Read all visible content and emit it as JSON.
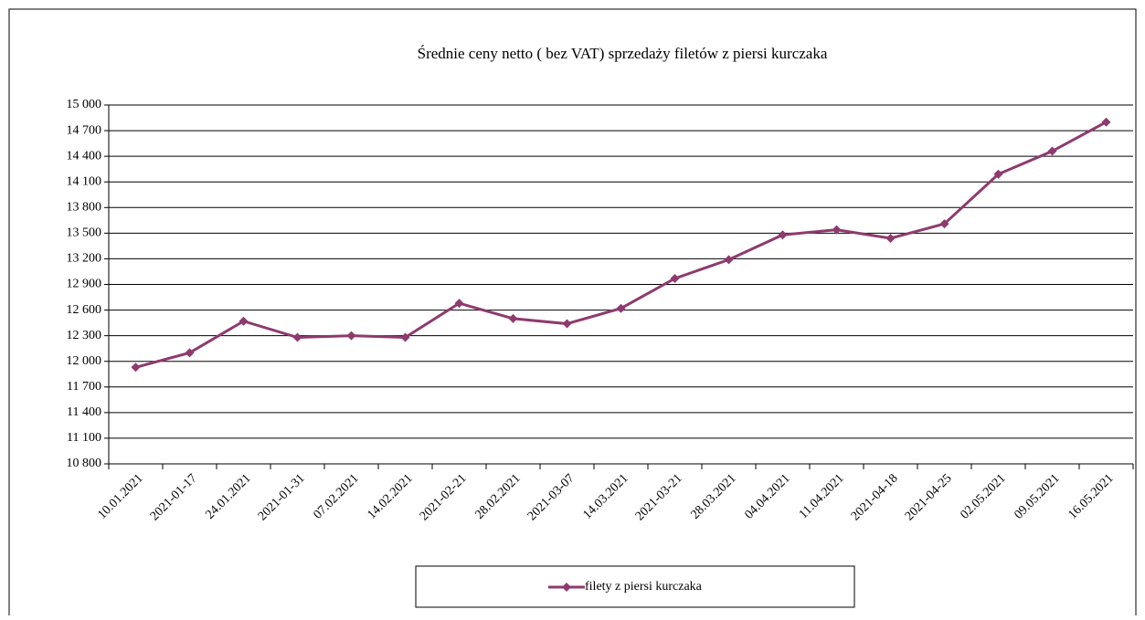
{
  "chart_data": {
    "type": "line",
    "title": "Średnie ceny netto ( bez VAT) sprzedaży filetów z piersi kurczaka",
    "categories": [
      "10.01.2021",
      "2021-01-17",
      "24.01.2021",
      "2021-01-31",
      "07.02.2021",
      "14.02.2021",
      "2021-02-21",
      "28.02.2021",
      "2021-03-07",
      "14.03.2021",
      "2021-03-21",
      "28.03.2021",
      "04.04.2021",
      "11.04.2021",
      "2021-04-18",
      "2021-04-25",
      "02.05.2021",
      "09.05.2021",
      "16.05.2021"
    ],
    "series": [
      {
        "name": "filety z piersi kurczaka",
        "color": "#8e3a6e",
        "values": [
          11930,
          12100,
          12470,
          12280,
          12300,
          12280,
          12680,
          12500,
          12440,
          12620,
          12970,
          13190,
          13480,
          13540,
          13440,
          13610,
          14190,
          14460,
          14800
        ]
      }
    ],
    "ylim": [
      10800,
      15000
    ],
    "yticks": [
      {
        "value": 10800,
        "label": "10 800"
      },
      {
        "value": 11100,
        "label": "11 100"
      },
      {
        "value": 11400,
        "label": "11 400"
      },
      {
        "value": 11700,
        "label": "11 700"
      },
      {
        "value": 12000,
        "label": "12 000"
      },
      {
        "value": 12300,
        "label": "12 300"
      },
      {
        "value": 12600,
        "label": "12 600"
      },
      {
        "value": 12900,
        "label": "12 900"
      },
      {
        "value": 13200,
        "label": "13 200"
      },
      {
        "value": 13500,
        "label": "13 500"
      },
      {
        "value": 13800,
        "label": "13 800"
      },
      {
        "value": 14100,
        "label": "14 100"
      },
      {
        "value": 14400,
        "label": "14 400"
      },
      {
        "value": 14700,
        "label": "14 700"
      },
      {
        "value": 15000,
        "label": "15 000"
      }
    ],
    "grid": true,
    "legend": "bottom"
  }
}
